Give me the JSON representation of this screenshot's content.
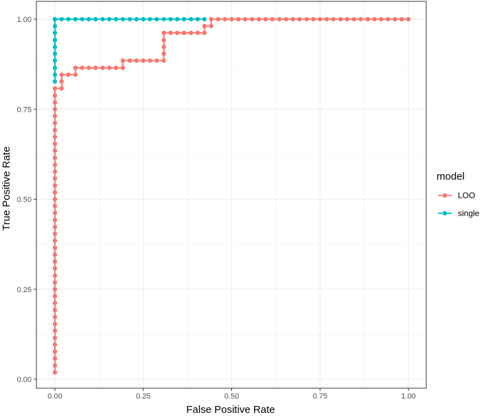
{
  "chart_data": {
    "type": "line",
    "title": "",
    "xlabel": "False Positive Rate",
    "ylabel": "True Positive Rate",
    "xlim": [
      0,
      1
    ],
    "ylim": [
      0,
      1
    ],
    "x_ticks": [
      0,
      0.25,
      0.5,
      0.75,
      1
    ],
    "y_ticks": [
      0,
      0.25,
      0.5,
      0.75,
      1
    ],
    "x_tick_labels": [
      "0.00",
      "0.25",
      "0.50",
      "0.75",
      "1.00"
    ],
    "y_tick_labels": [
      "0.00",
      "0.25",
      "0.50",
      "0.75",
      "1.00"
    ],
    "grid": true,
    "legend": {
      "title": "model",
      "position": "right"
    },
    "series": [
      {
        "name": "LOO",
        "color": "#F8766D",
        "points": [
          [
            0,
            0.019
          ],
          [
            0,
            0.038
          ],
          [
            0,
            0.058
          ],
          [
            0,
            0.077
          ],
          [
            0,
            0.096
          ],
          [
            0,
            0.115
          ],
          [
            0,
            0.135
          ],
          [
            0,
            0.154
          ],
          [
            0,
            0.173
          ],
          [
            0,
            0.192
          ],
          [
            0,
            0.212
          ],
          [
            0,
            0.231
          ],
          [
            0,
            0.25
          ],
          [
            0,
            0.269
          ],
          [
            0,
            0.288
          ],
          [
            0,
            0.308
          ],
          [
            0,
            0.327
          ],
          [
            0,
            0.346
          ],
          [
            0,
            0.365
          ],
          [
            0,
            0.385
          ],
          [
            0,
            0.404
          ],
          [
            0,
            0.423
          ],
          [
            0,
            0.442
          ],
          [
            0,
            0.462
          ],
          [
            0,
            0.481
          ],
          [
            0,
            0.5
          ],
          [
            0,
            0.519
          ],
          [
            0,
            0.538
          ],
          [
            0,
            0.558
          ],
          [
            0,
            0.577
          ],
          [
            0,
            0.596
          ],
          [
            0,
            0.615
          ],
          [
            0,
            0.635
          ],
          [
            0,
            0.654
          ],
          [
            0,
            0.673
          ],
          [
            0,
            0.692
          ],
          [
            0,
            0.712
          ],
          [
            0,
            0.731
          ],
          [
            0,
            0.75
          ],
          [
            0,
            0.769
          ],
          [
            0,
            0.788
          ],
          [
            0,
            0.808
          ],
          [
            0.019,
            0.808
          ],
          [
            0.019,
            0.827
          ],
          [
            0.019,
            0.846
          ],
          [
            0.038,
            0.846
          ],
          [
            0.058,
            0.846
          ],
          [
            0.058,
            0.865
          ],
          [
            0.077,
            0.865
          ],
          [
            0.096,
            0.865
          ],
          [
            0.115,
            0.865
          ],
          [
            0.135,
            0.865
          ],
          [
            0.154,
            0.865
          ],
          [
            0.173,
            0.865
          ],
          [
            0.192,
            0.865
          ],
          [
            0.192,
            0.885
          ],
          [
            0.212,
            0.885
          ],
          [
            0.231,
            0.885
          ],
          [
            0.25,
            0.885
          ],
          [
            0.269,
            0.885
          ],
          [
            0.288,
            0.885
          ],
          [
            0.308,
            0.885
          ],
          [
            0.308,
            0.904
          ],
          [
            0.308,
            0.923
          ],
          [
            0.308,
            0.942
          ],
          [
            0.308,
            0.962
          ],
          [
            0.327,
            0.962
          ],
          [
            0.346,
            0.962
          ],
          [
            0.365,
            0.962
          ],
          [
            0.385,
            0.962
          ],
          [
            0.404,
            0.962
          ],
          [
            0.423,
            0.962
          ],
          [
            0.423,
            0.981
          ],
          [
            0.442,
            0.981
          ],
          [
            0.442,
            1
          ],
          [
            0.462,
            1
          ],
          [
            0.481,
            1
          ],
          [
            0.5,
            1
          ],
          [
            0.519,
            1
          ],
          [
            0.538,
            1
          ],
          [
            0.558,
            1
          ],
          [
            0.577,
            1
          ],
          [
            0.596,
            1
          ],
          [
            0.615,
            1
          ],
          [
            0.635,
            1
          ],
          [
            0.654,
            1
          ],
          [
            0.673,
            1
          ],
          [
            0.692,
            1
          ],
          [
            0.712,
            1
          ],
          [
            0.731,
            1
          ],
          [
            0.75,
            1
          ],
          [
            0.769,
            1
          ],
          [
            0.788,
            1
          ],
          [
            0.808,
            1
          ],
          [
            0.827,
            1
          ],
          [
            0.846,
            1
          ],
          [
            0.865,
            1
          ],
          [
            0.885,
            1
          ],
          [
            0.904,
            1
          ],
          [
            0.923,
            1
          ],
          [
            0.942,
            1
          ],
          [
            0.962,
            1
          ],
          [
            0.981,
            1
          ],
          [
            1,
            1
          ]
        ]
      },
      {
        "name": "single",
        "color": "#00BFC4",
        "points": [
          [
            0,
            0.827
          ],
          [
            0,
            0.846
          ],
          [
            0,
            0.865
          ],
          [
            0,
            0.885
          ],
          [
            0,
            0.904
          ],
          [
            0,
            0.923
          ],
          [
            0,
            0.942
          ],
          [
            0,
            0.962
          ],
          [
            0,
            0.981
          ],
          [
            0,
            1
          ],
          [
            0.019,
            1
          ],
          [
            0.038,
            1
          ],
          [
            0.058,
            1
          ],
          [
            0.077,
            1
          ],
          [
            0.096,
            1
          ],
          [
            0.115,
            1
          ],
          [
            0.135,
            1
          ],
          [
            0.154,
            1
          ],
          [
            0.173,
            1
          ],
          [
            0.192,
            1
          ],
          [
            0.212,
            1
          ],
          [
            0.231,
            1
          ],
          [
            0.25,
            1
          ],
          [
            0.269,
            1
          ],
          [
            0.288,
            1
          ],
          [
            0.308,
            1
          ],
          [
            0.327,
            1
          ],
          [
            0.346,
            1
          ],
          [
            0.365,
            1
          ],
          [
            0.385,
            1
          ],
          [
            0.404,
            1
          ],
          [
            0.423,
            1
          ]
        ]
      }
    ]
  }
}
